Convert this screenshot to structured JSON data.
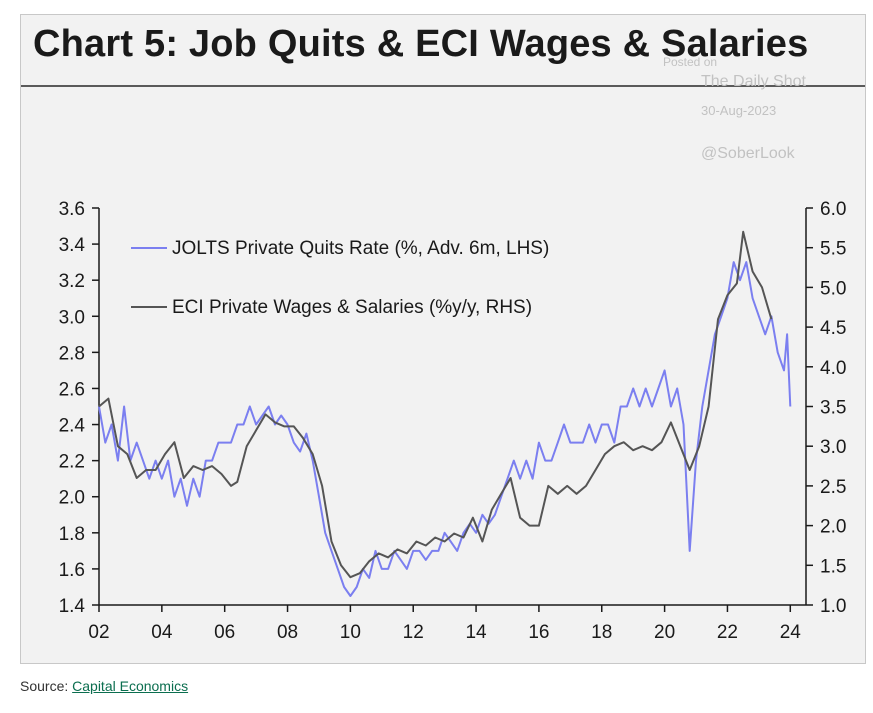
{
  "title": "Chart 5: Job Quits & ECI Wages & Salaries",
  "watermark": {
    "line1": "Posted on",
    "line2": "The Daily Shot",
    "line3": "30-Aug-2023",
    "line4": "@SoberLook"
  },
  "source": {
    "label": "Source:",
    "link_text": "Capital Economics"
  },
  "chart_data": {
    "type": "line",
    "title": "Chart 5: Job Quits & ECI Wages & Salaries",
    "x_tick_labels": [
      "02",
      "04",
      "06",
      "08",
      "10",
      "12",
      "14",
      "16",
      "18",
      "20",
      "22",
      "24"
    ],
    "x_ticks": [
      2002,
      2004,
      2006,
      2008,
      2010,
      2012,
      2014,
      2016,
      2018,
      2020,
      2022,
      2024
    ],
    "xlim": [
      2002,
      2024.5
    ],
    "y_left": {
      "lim": [
        1.4,
        3.6
      ],
      "ticks": [
        "1.4",
        "1.6",
        "1.8",
        "2.0",
        "2.2",
        "2.4",
        "2.6",
        "2.8",
        "3.0",
        "3.2",
        "3.4",
        "3.6"
      ]
    },
    "y_right": {
      "lim": [
        1.0,
        6.0
      ],
      "ticks": [
        "1.0",
        "1.5",
        "2.0",
        "2.5",
        "3.0",
        "3.5",
        "4.0",
        "4.5",
        "5.0",
        "5.5",
        "6.0"
      ]
    },
    "legend_placement": "top-left",
    "grid": false,
    "series": [
      {
        "name": "JOLTS Private Quits Rate (%, Adv. 6m, LHS)",
        "axis": "left",
        "color": "#7b7ff0",
        "points": [
          [
            2002.0,
            2.5
          ],
          [
            2002.2,
            2.3
          ],
          [
            2002.4,
            2.4
          ],
          [
            2002.6,
            2.2
          ],
          [
            2002.8,
            2.5
          ],
          [
            2003.0,
            2.2
          ],
          [
            2003.2,
            2.3
          ],
          [
            2003.4,
            2.2
          ],
          [
            2003.6,
            2.1
          ],
          [
            2003.8,
            2.2
          ],
          [
            2004.0,
            2.1
          ],
          [
            2004.2,
            2.2
          ],
          [
            2004.4,
            2.0
          ],
          [
            2004.6,
            2.1
          ],
          [
            2004.8,
            1.95
          ],
          [
            2005.0,
            2.1
          ],
          [
            2005.2,
            2.0
          ],
          [
            2005.4,
            2.2
          ],
          [
            2005.6,
            2.2
          ],
          [
            2005.8,
            2.3
          ],
          [
            2006.0,
            2.3
          ],
          [
            2006.2,
            2.3
          ],
          [
            2006.4,
            2.4
          ],
          [
            2006.6,
            2.4
          ],
          [
            2006.8,
            2.5
          ],
          [
            2007.0,
            2.4
          ],
          [
            2007.2,
            2.45
          ],
          [
            2007.4,
            2.5
          ],
          [
            2007.6,
            2.4
          ],
          [
            2007.8,
            2.45
          ],
          [
            2008.0,
            2.4
          ],
          [
            2008.2,
            2.3
          ],
          [
            2008.4,
            2.25
          ],
          [
            2008.6,
            2.35
          ],
          [
            2008.8,
            2.2
          ],
          [
            2009.0,
            2.0
          ],
          [
            2009.2,
            1.8
          ],
          [
            2009.4,
            1.7
          ],
          [
            2009.6,
            1.6
          ],
          [
            2009.8,
            1.5
          ],
          [
            2010.0,
            1.45
          ],
          [
            2010.2,
            1.5
          ],
          [
            2010.4,
            1.6
          ],
          [
            2010.6,
            1.55
          ],
          [
            2010.8,
            1.7
          ],
          [
            2011.0,
            1.6
          ],
          [
            2011.2,
            1.6
          ],
          [
            2011.4,
            1.7
          ],
          [
            2011.6,
            1.65
          ],
          [
            2011.8,
            1.6
          ],
          [
            2012.0,
            1.7
          ],
          [
            2012.2,
            1.7
          ],
          [
            2012.4,
            1.65
          ],
          [
            2012.6,
            1.7
          ],
          [
            2012.8,
            1.7
          ],
          [
            2013.0,
            1.8
          ],
          [
            2013.2,
            1.75
          ],
          [
            2013.4,
            1.7
          ],
          [
            2013.6,
            1.8
          ],
          [
            2013.8,
            1.85
          ],
          [
            2014.0,
            1.8
          ],
          [
            2014.2,
            1.9
          ],
          [
            2014.4,
            1.85
          ],
          [
            2014.6,
            1.9
          ],
          [
            2014.8,
            2.0
          ],
          [
            2015.0,
            2.1
          ],
          [
            2015.2,
            2.2
          ],
          [
            2015.4,
            2.1
          ],
          [
            2015.6,
            2.2
          ],
          [
            2015.8,
            2.1
          ],
          [
            2016.0,
            2.3
          ],
          [
            2016.2,
            2.2
          ],
          [
            2016.4,
            2.2
          ],
          [
            2016.6,
            2.3
          ],
          [
            2016.8,
            2.4
          ],
          [
            2017.0,
            2.3
          ],
          [
            2017.2,
            2.3
          ],
          [
            2017.4,
            2.3
          ],
          [
            2017.6,
            2.4
          ],
          [
            2017.8,
            2.3
          ],
          [
            2018.0,
            2.4
          ],
          [
            2018.2,
            2.4
          ],
          [
            2018.4,
            2.3
          ],
          [
            2018.6,
            2.5
          ],
          [
            2018.8,
            2.5
          ],
          [
            2019.0,
            2.6
          ],
          [
            2019.2,
            2.5
          ],
          [
            2019.4,
            2.6
          ],
          [
            2019.6,
            2.5
          ],
          [
            2019.8,
            2.6
          ],
          [
            2020.0,
            2.7
          ],
          [
            2020.2,
            2.5
          ],
          [
            2020.4,
            2.6
          ],
          [
            2020.6,
            2.4
          ],
          [
            2020.8,
            1.7
          ],
          [
            2021.0,
            2.2
          ],
          [
            2021.2,
            2.5
          ],
          [
            2021.4,
            2.7
          ],
          [
            2021.6,
            2.9
          ],
          [
            2021.8,
            3.0
          ],
          [
            2022.0,
            3.1
          ],
          [
            2022.2,
            3.3
          ],
          [
            2022.4,
            3.2
          ],
          [
            2022.6,
            3.3
          ],
          [
            2022.8,
            3.1
          ],
          [
            2023.0,
            3.0
          ],
          [
            2023.2,
            2.9
          ],
          [
            2023.4,
            3.0
          ],
          [
            2023.6,
            2.8
          ],
          [
            2023.8,
            2.7
          ],
          [
            2023.9,
            2.9
          ],
          [
            2024.0,
            2.5
          ]
        ]
      },
      {
        "name": "ECI Private Wages & Salaries (%y/y, RHS)",
        "axis": "right",
        "color": "#555555",
        "points": [
          [
            2002.0,
            3.5
          ],
          [
            2002.3,
            3.6
          ],
          [
            2002.6,
            3.0
          ],
          [
            2002.9,
            2.9
          ],
          [
            2003.2,
            2.6
          ],
          [
            2003.5,
            2.7
          ],
          [
            2003.8,
            2.7
          ],
          [
            2004.1,
            2.9
          ],
          [
            2004.4,
            3.05
          ],
          [
            2004.7,
            2.6
          ],
          [
            2005.0,
            2.75
          ],
          [
            2005.3,
            2.7
          ],
          [
            2005.6,
            2.75
          ],
          [
            2005.9,
            2.65
          ],
          [
            2006.2,
            2.5
          ],
          [
            2006.4,
            2.55
          ],
          [
            2006.7,
            3.0
          ],
          [
            2007.0,
            3.2
          ],
          [
            2007.3,
            3.4
          ],
          [
            2007.6,
            3.3
          ],
          [
            2007.9,
            3.25
          ],
          [
            2008.2,
            3.25
          ],
          [
            2008.5,
            3.1
          ],
          [
            2008.8,
            2.9
          ],
          [
            2009.1,
            2.5
          ],
          [
            2009.4,
            1.8
          ],
          [
            2009.7,
            1.5
          ],
          [
            2010.0,
            1.35
          ],
          [
            2010.3,
            1.4
          ],
          [
            2010.6,
            1.55
          ],
          [
            2010.9,
            1.65
          ],
          [
            2011.2,
            1.6
          ],
          [
            2011.5,
            1.7
          ],
          [
            2011.8,
            1.65
          ],
          [
            2012.1,
            1.8
          ],
          [
            2012.4,
            1.75
          ],
          [
            2012.7,
            1.85
          ],
          [
            2013.0,
            1.8
          ],
          [
            2013.3,
            1.9
          ],
          [
            2013.6,
            1.85
          ],
          [
            2013.9,
            2.1
          ],
          [
            2014.2,
            1.8
          ],
          [
            2014.5,
            2.2
          ],
          [
            2014.8,
            2.4
          ],
          [
            2015.1,
            2.6
          ],
          [
            2015.4,
            2.1
          ],
          [
            2015.7,
            2.0
          ],
          [
            2016.0,
            2.0
          ],
          [
            2016.3,
            2.5
          ],
          [
            2016.6,
            2.4
          ],
          [
            2016.9,
            2.5
          ],
          [
            2017.2,
            2.4
          ],
          [
            2017.5,
            2.5
          ],
          [
            2017.8,
            2.7
          ],
          [
            2018.1,
            2.9
          ],
          [
            2018.4,
            3.0
          ],
          [
            2018.7,
            3.05
          ],
          [
            2019.0,
            2.95
          ],
          [
            2019.3,
            3.0
          ],
          [
            2019.6,
            2.95
          ],
          [
            2019.9,
            3.05
          ],
          [
            2020.2,
            3.3
          ],
          [
            2020.5,
            3.0
          ],
          [
            2020.8,
            2.7
          ],
          [
            2021.1,
            3.0
          ],
          [
            2021.4,
            3.5
          ],
          [
            2021.7,
            4.6
          ],
          [
            2022.0,
            4.9
          ],
          [
            2022.3,
            5.05
          ],
          [
            2022.5,
            5.7
          ],
          [
            2022.8,
            5.2
          ],
          [
            2023.1,
            5.0
          ],
          [
            2023.4,
            4.6
          ]
        ]
      }
    ]
  }
}
